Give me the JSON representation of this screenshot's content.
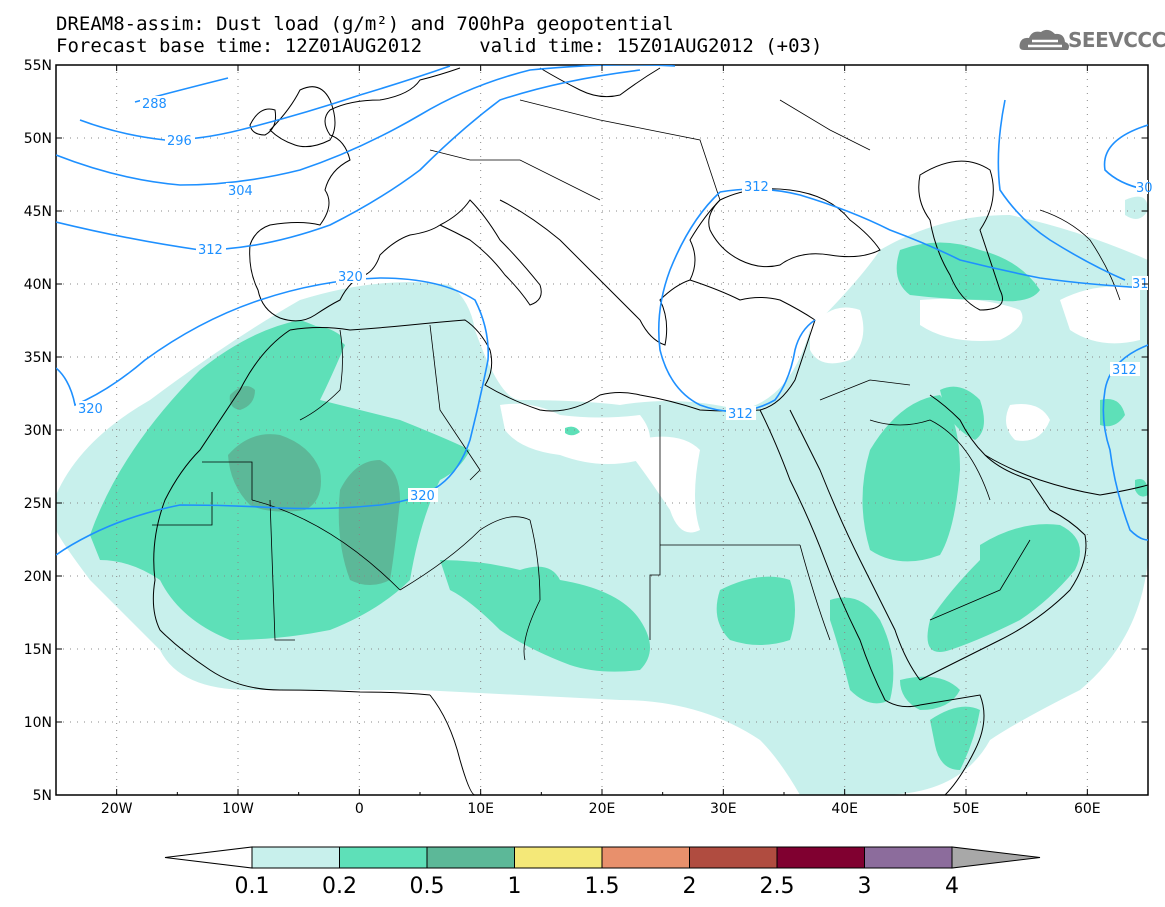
{
  "header": {
    "title_line1": "DREAM8-assim: Dust load (g/m²) and 700hPa geopotential",
    "title_line2": "Forecast base time: 12Z01AUG2012     valid time: 15Z01AUG2012 (+03)"
  },
  "logo": {
    "text": "SEEVCCC",
    "icon": "cloud-logo-icon"
  },
  "map": {
    "lat_labels": [
      "55N",
      "50N",
      "45N",
      "40N",
      "35N",
      "30N",
      "25N",
      "20N",
      "15N",
      "10N",
      "5N"
    ],
    "lon_labels": [
      "20W",
      "10W",
      "0",
      "10E",
      "20E",
      "30E",
      "40E",
      "50E",
      "60E"
    ],
    "extent": {
      "lon": [
        -25,
        65
      ],
      "lat": [
        5,
        55
      ]
    }
  },
  "contours": {
    "color": "#1e90ff",
    "labels": [
      "288",
      "296",
      "304",
      "312",
      "320",
      "320",
      "320",
      "312",
      "312",
      "312",
      "30",
      "31"
    ]
  },
  "colorbar": {
    "labels": [
      "0.1",
      "0.2",
      "0.5",
      "1",
      "1.5",
      "2",
      "2.5",
      "3",
      "4"
    ],
    "colors": [
      "#c8f0ec",
      "#5ee0b8",
      "#5cb898",
      "#f4e878",
      "#e8906c",
      "#b04c40",
      "#800030",
      "#8c6c9c",
      "#a8a8a8"
    ]
  },
  "dust_colors": {
    "light": "#c8f0ec",
    "medium": "#5ee0b8",
    "dark": "#5cb898"
  }
}
